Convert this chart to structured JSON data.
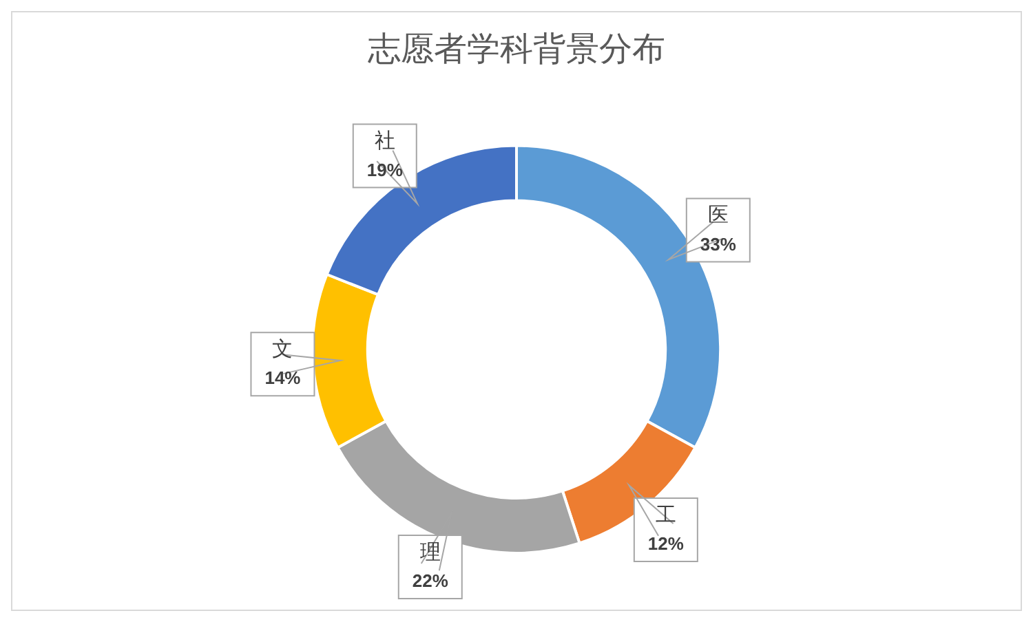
{
  "chart_data": {
    "type": "donut",
    "title": "志愿者学科背景分布",
    "categories": [
      "医",
      "工",
      "理",
      "文",
      "社"
    ],
    "values": [
      33,
      12,
      22,
      14,
      19
    ],
    "colors": [
      "#5b9bd5",
      "#ed7d31",
      "#a5a5a5",
      "#ffc000",
      "#4472c4"
    ],
    "value_labels": [
      "33%",
      "12%",
      "22%",
      "14%",
      "19%"
    ],
    "legend": false
  }
}
